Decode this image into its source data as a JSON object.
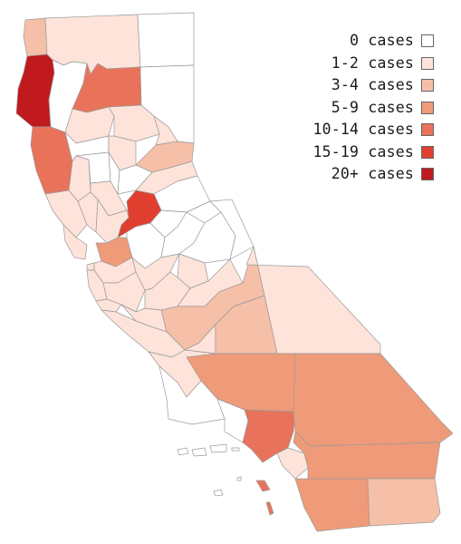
{
  "legend": {
    "items": [
      {
        "label": "0 cases",
        "color": "#ffffff"
      },
      {
        "label": "1-2 cases",
        "color": "#fde3d9"
      },
      {
        "label": "3-4 cases",
        "color": "#f6bfa8"
      },
      {
        "label": "5-9 cases",
        "color": "#ef9a79"
      },
      {
        "label": "10-14 cases",
        "color": "#e8735a"
      },
      {
        "label": "15-19 cases",
        "color": "#e03f30"
      },
      {
        "label": "20+ cases",
        "color": "#c0191e"
      }
    ]
  },
  "regions": [
    {
      "id": "del-norte",
      "category": 2
    },
    {
      "id": "siskiyou",
      "category": 1
    },
    {
      "id": "modoc",
      "category": 0
    },
    {
      "id": "humboldt",
      "category": 6
    },
    {
      "id": "trinity",
      "category": 0
    },
    {
      "id": "shasta",
      "category": 4
    },
    {
      "id": "lassen",
      "category": 0
    },
    {
      "id": "mendocino",
      "category": 4
    },
    {
      "id": "tehama",
      "category": 1
    },
    {
      "id": "plumas",
      "category": 1
    },
    {
      "id": "glenn",
      "category": 0
    },
    {
      "id": "butte",
      "category": 1
    },
    {
      "id": "sierra",
      "category": 1
    },
    {
      "id": "nevada",
      "category": 2
    },
    {
      "id": "lake",
      "category": 1
    },
    {
      "id": "colusa",
      "category": 0
    },
    {
      "id": "sutter",
      "category": 0
    },
    {
      "id": "yuba",
      "category": 0
    },
    {
      "id": "placer",
      "category": 1
    },
    {
      "id": "el-dorado",
      "category": 0
    },
    {
      "id": "sonoma",
      "category": 1
    },
    {
      "id": "napa",
      "category": 1
    },
    {
      "id": "yolo",
      "category": 1
    },
    {
      "id": "sacramento",
      "category": 5
    },
    {
      "id": "solano",
      "category": 1
    },
    {
      "id": "marin",
      "category": 1
    },
    {
      "id": "contra-costa",
      "category": 3
    },
    {
      "id": "san-joaquin",
      "category": 0
    },
    {
      "id": "amador",
      "category": 0
    },
    {
      "id": "calaveras",
      "category": 0
    },
    {
      "id": "alpine",
      "category": 0
    },
    {
      "id": "tuolumne",
      "category": 0
    },
    {
      "id": "mono",
      "category": 0
    },
    {
      "id": "san-francisco",
      "category": 1
    },
    {
      "id": "san-mateo",
      "category": 1
    },
    {
      "id": "alameda",
      "category": 1
    },
    {
      "id": "santa-clara",
      "category": 1
    },
    {
      "id": "stanislaus",
      "category": 1
    },
    {
      "id": "mariposa",
      "category": 1
    },
    {
      "id": "merced",
      "category": 1
    },
    {
      "id": "madera",
      "category": 1
    },
    {
      "id": "fresno",
      "category": 2
    },
    {
      "id": "santa-cruz",
      "category": 1
    },
    {
      "id": "san-benito",
      "category": 1
    },
    {
      "id": "monterey",
      "category": 1
    },
    {
      "id": "inyo",
      "category": 1
    },
    {
      "id": "kings",
      "category": 1
    },
    {
      "id": "tulare",
      "category": 2
    },
    {
      "id": "san-luis-obispo",
      "category": 1
    },
    {
      "id": "kern",
      "category": 3
    },
    {
      "id": "santa-barbara",
      "category": 0
    },
    {
      "id": "ventura",
      "category": 0
    },
    {
      "id": "los-angeles",
      "category": 4
    },
    {
      "id": "san-bernardino",
      "category": 3
    },
    {
      "id": "orange",
      "category": 1
    },
    {
      "id": "riverside",
      "category": 3
    },
    {
      "id": "san-diego",
      "category": 3
    },
    {
      "id": "imperial",
      "category": 2
    }
  ]
}
